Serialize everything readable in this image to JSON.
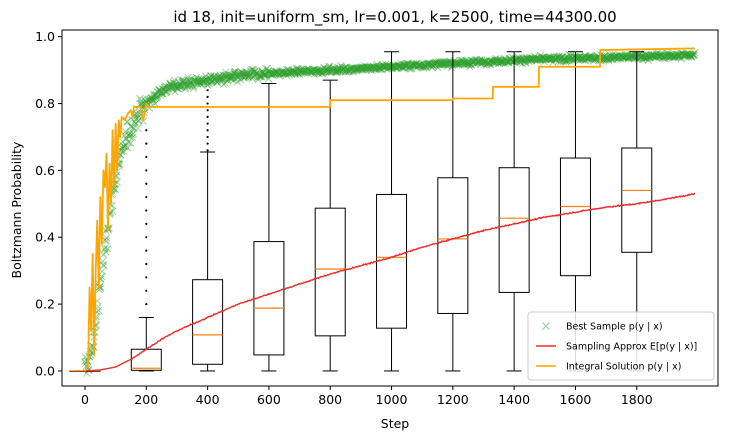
{
  "chart_data": {
    "type": "scatter",
    "title": "id 18, init=uniform_sm, lr=0.001, k=2500, time=44300.00",
    "xlabel": "Step",
    "ylabel": "Boltzmann Probability",
    "xlim": [
      -75,
      2065
    ],
    "ylim": [
      -0.045,
      1.02
    ],
    "x_ticks": [
      0,
      200,
      400,
      600,
      800,
      1000,
      1200,
      1400,
      1600,
      1800
    ],
    "y_ticks": [
      0.0,
      0.2,
      0.4,
      0.6,
      0.8,
      1.0
    ],
    "y_tick_labels": [
      "0.0",
      "0.2",
      "0.4",
      "0.6",
      "0.8",
      "1.0"
    ],
    "grid": false,
    "legend_placement": "lower right",
    "colors": {
      "best_sample": "#2ca02c",
      "sampling_approx": "#e8302e",
      "integral_solution": "#ffa500",
      "box": "#000000",
      "median": "#ff7f0e"
    },
    "legend": [
      {
        "key": "best",
        "label": "Best Sample p(y | x)"
      },
      {
        "key": "sampling",
        "label": "Sampling Approx E[p(y | x)]"
      },
      {
        "key": "integral",
        "label": "Integral Solution p(y | x)"
      }
    ],
    "best_sample_trend": {
      "x": [
        0,
        20,
        40,
        60,
        80,
        100,
        130,
        160,
        200,
        250,
        300,
        400,
        500,
        600,
        800,
        1000,
        1200,
        1400,
        1600,
        1800,
        1990
      ],
      "y": [
        0.0,
        0.05,
        0.18,
        0.33,
        0.47,
        0.58,
        0.68,
        0.75,
        0.8,
        0.84,
        0.855,
        0.87,
        0.88,
        0.89,
        0.9,
        0.91,
        0.92,
        0.93,
        0.935,
        0.94,
        0.945
      ]
    },
    "sampling_approx": {
      "x": [
        0,
        50,
        100,
        150,
        200,
        250,
        300,
        400,
        500,
        600,
        700,
        800,
        900,
        1000,
        1100,
        1200,
        1300,
        1400,
        1500,
        1600,
        1700,
        1800,
        1900,
        1990
      ],
      "y": [
        0.0,
        0.003,
        0.012,
        0.035,
        0.065,
        0.095,
        0.12,
        0.16,
        0.2,
        0.23,
        0.26,
        0.29,
        0.315,
        0.34,
        0.37,
        0.395,
        0.42,
        0.44,
        0.46,
        0.475,
        0.49,
        0.5,
        0.515,
        0.53
      ]
    },
    "integral_solution": {
      "x": [
        0,
        10,
        15,
        20,
        25,
        30,
        35,
        40,
        45,
        50,
        55,
        60,
        65,
        70,
        75,
        80,
        85,
        90,
        95,
        100,
        105,
        110,
        115,
        120,
        130,
        140,
        150,
        155,
        160,
        180,
        190,
        200,
        210,
        300,
        400,
        500,
        600,
        700,
        799,
        800,
        900,
        1000,
        1100,
        1199,
        1200,
        1330,
        1331,
        1480,
        1481,
        1680,
        1681,
        1990
      ],
      "y": [
        0.0,
        0.02,
        0.25,
        0.12,
        0.35,
        0.05,
        0.3,
        0.45,
        0.25,
        0.52,
        0.38,
        0.6,
        0.55,
        0.65,
        0.42,
        0.62,
        0.5,
        0.72,
        0.55,
        0.74,
        0.6,
        0.75,
        0.7,
        0.76,
        0.75,
        0.77,
        0.78,
        0.76,
        0.79,
        0.79,
        0.75,
        0.8,
        0.79,
        0.79,
        0.79,
        0.79,
        0.79,
        0.79,
        0.79,
        0.81,
        0.81,
        0.81,
        0.81,
        0.81,
        0.815,
        0.815,
        0.85,
        0.85,
        0.91,
        0.91,
        0.96,
        0.965
      ]
    },
    "boxes": [
      {
        "x": 0,
        "q1": 0.0,
        "median": 0.0,
        "q3": 0.0,
        "whisker_low": 0.0,
        "whisker_high": 0.0,
        "outliers": []
      },
      {
        "x": 200,
        "q1": 0.002,
        "median": 0.008,
        "q3": 0.065,
        "whisker_low": 0.0,
        "whisker_high": 0.16,
        "outliers": [
          0.2,
          0.24,
          0.28,
          0.32,
          0.36,
          0.4,
          0.44,
          0.48,
          0.52,
          0.56,
          0.6,
          0.64,
          0.68,
          0.72
        ]
      },
      {
        "x": 400,
        "q1": 0.02,
        "median": 0.108,
        "q3": 0.273,
        "whisker_low": 0.0,
        "whisker_high": 0.655,
        "outliers": [
          0.66,
          0.68,
          0.7,
          0.72,
          0.74,
          0.76,
          0.78,
          0.8,
          0.82,
          0.84
        ]
      },
      {
        "x": 600,
        "q1": 0.048,
        "median": 0.188,
        "q3": 0.387,
        "whisker_low": 0.0,
        "whisker_high": 0.86,
        "outliers": []
      },
      {
        "x": 800,
        "q1": 0.105,
        "median": 0.305,
        "q3": 0.487,
        "whisker_low": 0.0,
        "whisker_high": 0.87,
        "outliers": []
      },
      {
        "x": 1000,
        "q1": 0.128,
        "median": 0.34,
        "q3": 0.528,
        "whisker_low": 0.0,
        "whisker_high": 0.955,
        "outliers": []
      },
      {
        "x": 1200,
        "q1": 0.172,
        "median": 0.395,
        "q3": 0.578,
        "whisker_low": 0.0,
        "whisker_high": 0.955,
        "outliers": []
      },
      {
        "x": 1400,
        "q1": 0.235,
        "median": 0.457,
        "q3": 0.608,
        "whisker_low": 0.0,
        "whisker_high": 0.955,
        "outliers": []
      },
      {
        "x": 1600,
        "q1": 0.285,
        "median": 0.492,
        "q3": 0.637,
        "whisker_low": 0.0,
        "whisker_high": 0.955,
        "outliers": []
      },
      {
        "x": 1800,
        "q1": 0.355,
        "median": 0.54,
        "q3": 0.667,
        "whisker_low": 0.0,
        "whisker_high": 0.955,
        "outliers": []
      }
    ]
  }
}
